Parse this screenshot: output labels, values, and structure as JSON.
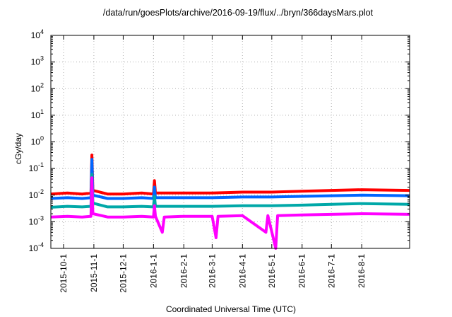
{
  "chart_data": {
    "type": "line",
    "title": "/data/run/goesPlots/archive/2016-09-19/flux/../bryn/366daysMars.plot",
    "xlabel": "Coordinated Universal Time (UTC)",
    "ylabel": "cGy/day",
    "yscale": "log",
    "ylim": [
      0.0001,
      10000
    ],
    "xlim": [
      "2015-09-18",
      "2016-09-19"
    ],
    "grid": true,
    "x_ticks": [
      "2015-10-1",
      "2015-11-1",
      "2015-12-1",
      "2016-1-1",
      "2016-2-1",
      "2016-3-1",
      "2016-4-1",
      "2016-5-1",
      "2016-6-1",
      "2016-7-1",
      "2016-8-1"
    ],
    "y_ticks": [
      {
        "value": 0.0001,
        "base": "10",
        "exp": "-4"
      },
      {
        "value": 0.001,
        "base": "10",
        "exp": "-3"
      },
      {
        "value": 0.01,
        "base": "10",
        "exp": "-2"
      },
      {
        "value": 0.1,
        "base": "10",
        "exp": "-1"
      },
      {
        "value": 1,
        "base": "10",
        "exp": "0"
      },
      {
        "value": 10,
        "base": "10",
        "exp": "1"
      },
      {
        "value": 100,
        "base": "10",
        "exp": "2"
      },
      {
        "value": 1000,
        "base": "10",
        "exp": "3"
      },
      {
        "value": 10000,
        "base": "10",
        "exp": "4"
      }
    ],
    "series": [
      {
        "color": "#ff0000",
        "values": [
          [
            "2015-09-18",
            0.011
          ],
          [
            "2015-10-05",
            0.012
          ],
          [
            "2015-10-20",
            0.011
          ],
          [
            "2015-10-29",
            0.012
          ],
          [
            "2015-10-30",
            0.32
          ],
          [
            "2015-10-31",
            0.015
          ],
          [
            "2015-11-15",
            0.011
          ],
          [
            "2015-12-01",
            0.011
          ],
          [
            "2015-12-20",
            0.012
          ],
          [
            "2016-01-01",
            0.011
          ],
          [
            "2016-01-02",
            0.035
          ],
          [
            "2016-01-03",
            0.012
          ],
          [
            "2016-02-01",
            0.012
          ],
          [
            "2016-03-01",
            0.012
          ],
          [
            "2016-04-01",
            0.013
          ],
          [
            "2016-05-01",
            0.013
          ],
          [
            "2016-06-01",
            0.014
          ],
          [
            "2016-07-01",
            0.015
          ],
          [
            "2016-08-01",
            0.016
          ],
          [
            "2016-09-19",
            0.015
          ]
        ]
      },
      {
        "color": "#0066ff",
        "values": [
          [
            "2015-09-18",
            0.0075
          ],
          [
            "2015-10-05",
            0.008
          ],
          [
            "2015-10-20",
            0.0075
          ],
          [
            "2015-10-29",
            0.008
          ],
          [
            "2015-10-30",
            0.22
          ],
          [
            "2015-10-31",
            0.01
          ],
          [
            "2015-11-15",
            0.0075
          ],
          [
            "2015-12-01",
            0.0075
          ],
          [
            "2015-12-20",
            0.008
          ],
          [
            "2016-01-01",
            0.0075
          ],
          [
            "2016-01-02",
            0.02
          ],
          [
            "2016-01-03",
            0.008
          ],
          [
            "2016-02-01",
            0.008
          ],
          [
            "2016-03-01",
            0.008
          ],
          [
            "2016-04-01",
            0.0085
          ],
          [
            "2016-05-01",
            0.0085
          ],
          [
            "2016-06-01",
            0.009
          ],
          [
            "2016-07-01",
            0.0095
          ],
          [
            "2016-08-01",
            0.01
          ],
          [
            "2016-09-19",
            0.0095
          ]
        ]
      },
      {
        "color": "#00a8a8",
        "values": [
          [
            "2015-09-18",
            0.0035
          ],
          [
            "2015-10-05",
            0.0038
          ],
          [
            "2015-10-20",
            0.0036
          ],
          [
            "2015-10-29",
            0.0038
          ],
          [
            "2015-10-30",
            0.06
          ],
          [
            "2015-10-31",
            0.005
          ],
          [
            "2015-11-15",
            0.0036
          ],
          [
            "2015-12-01",
            0.0036
          ],
          [
            "2015-12-20",
            0.0038
          ],
          [
            "2016-01-01",
            0.0036
          ],
          [
            "2016-01-02",
            0.009
          ],
          [
            "2016-01-03",
            0.0038
          ],
          [
            "2016-02-01",
            0.0038
          ],
          [
            "2016-03-01",
            0.0038
          ],
          [
            "2016-04-01",
            0.004
          ],
          [
            "2016-05-01",
            0.004
          ],
          [
            "2016-06-01",
            0.0042
          ],
          [
            "2016-07-01",
            0.0045
          ],
          [
            "2016-08-01",
            0.0048
          ],
          [
            "2016-09-19",
            0.0045
          ]
        ]
      },
      {
        "color": "#ff00ff",
        "values": [
          [
            "2015-09-18",
            0.0015
          ],
          [
            "2015-10-05",
            0.0016
          ],
          [
            "2015-10-20",
            0.0015
          ],
          [
            "2015-10-29",
            0.0016
          ],
          [
            "2015-10-30",
            0.045
          ],
          [
            "2015-10-31",
            0.002
          ],
          [
            "2015-11-15",
            0.0015
          ],
          [
            "2015-12-01",
            0.0015
          ],
          [
            "2015-12-20",
            0.0016
          ],
          [
            "2016-01-01",
            0.0015
          ],
          [
            "2016-01-02",
            0.004
          ],
          [
            "2016-01-03",
            0.0016
          ],
          [
            "2016-01-10",
            0.0004
          ],
          [
            "2016-01-12",
            0.0015
          ],
          [
            "2016-02-01",
            0.0016
          ],
          [
            "2016-03-01",
            0.0016
          ],
          [
            "2016-03-05",
            0.00025
          ],
          [
            "2016-03-07",
            0.0016
          ],
          [
            "2016-04-01",
            0.0017
          ],
          [
            "2016-04-25",
            0.0004
          ],
          [
            "2016-04-27",
            0.0017
          ],
          [
            "2016-05-05",
            0.0001
          ],
          [
            "2016-05-07",
            0.0017
          ],
          [
            "2016-06-01",
            0.0018
          ],
          [
            "2016-07-01",
            0.0019
          ],
          [
            "2016-08-01",
            0.002
          ],
          [
            "2016-09-19",
            0.0019
          ]
        ]
      }
    ]
  }
}
